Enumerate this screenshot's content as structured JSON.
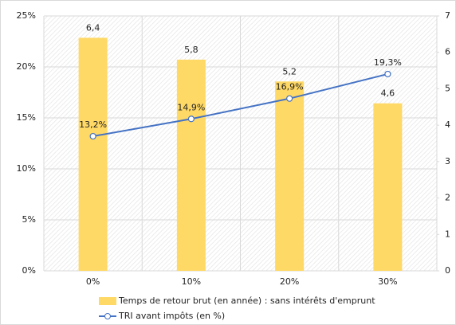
{
  "chart_data": {
    "type": "bar",
    "categories": [
      "0%",
      "10%",
      "20%",
      "30%"
    ],
    "series": [
      {
        "name": "Temps de retour brut (en année) : sans intérêts d'emprunt",
        "type": "bar",
        "axis": "y2",
        "color": "#ffd966",
        "values": [
          6.4,
          5.8,
          5.2,
          4.6
        ],
        "value_labels": [
          "6,4",
          "5,8",
          "5,2",
          "4,6"
        ]
      },
      {
        "name": "TRI avant impôts (en %)",
        "type": "line",
        "color": "#4472c4",
        "values": [
          13.2,
          14.9,
          16.9,
          19.3
        ],
        "value_labels": [
          "13,2%",
          "14,9%",
          "16,9%",
          "19,3%"
        ]
      }
    ],
    "ylim": [
      0,
      25
    ],
    "yticks": [
      {
        "value": 0,
        "label": "0%"
      },
      {
        "value": 5,
        "label": "5%"
      },
      {
        "value": 10,
        "label": "10%"
      },
      {
        "value": 15,
        "label": "15%"
      },
      {
        "value": 20,
        "label": "20%"
      },
      {
        "value": 25,
        "label": "25%"
      }
    ],
    "y2lim": [
      0,
      7
    ],
    "y2ticks": [
      0,
      1,
      2,
      3,
      4,
      5,
      6,
      7
    ],
    "grid": true,
    "legend": "bottom"
  }
}
